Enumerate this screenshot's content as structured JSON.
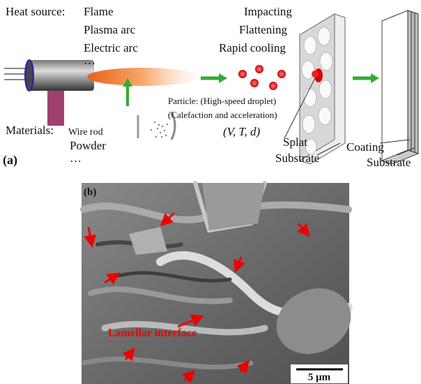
{
  "panel_a": {
    "label": "(a)",
    "heat_source": {
      "title": "Heat source:",
      "items": [
        "Flame",
        "Plasma arc",
        "Electric arc",
        "…"
      ]
    },
    "materials": {
      "title": "Materials:",
      "items": [
        "Wire rod",
        "Powder",
        "…"
      ]
    },
    "particle": [
      "Particle: (High-speed droplet)",
      "(Calefaction and acceleration)",
      "(V, T, d)"
    ],
    "process": [
      "Impacting",
      "Flattening",
      "Rapid cooling"
    ],
    "splat_labels": [
      "Splat",
      "Substrate"
    ],
    "coating_labels": [
      "Coating",
      "Substrate"
    ]
  },
  "panel_b": {
    "label": "(b)",
    "annotation": "Lamellar interface",
    "scale_bar": "5 μm"
  }
}
